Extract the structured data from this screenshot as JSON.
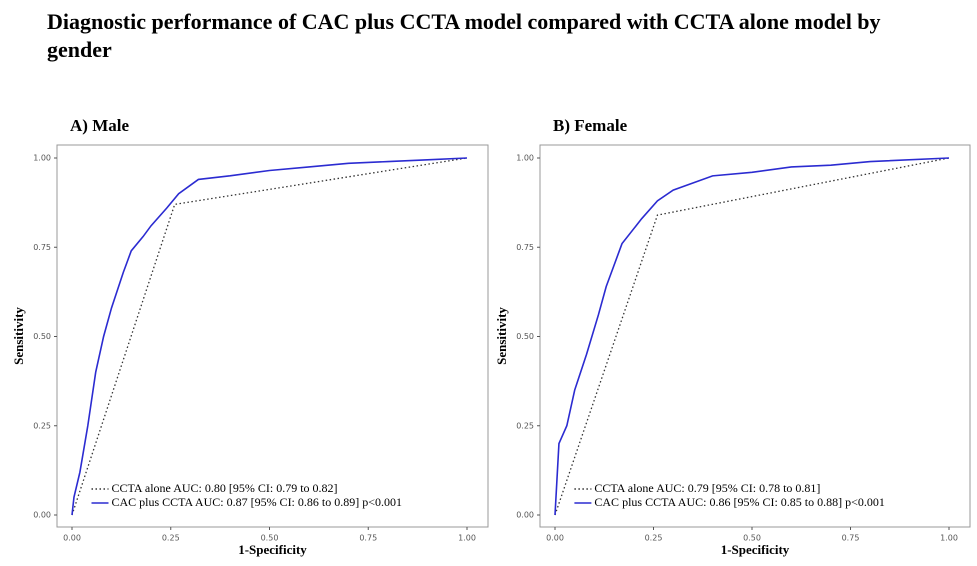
{
  "title": "Diagnostic performance of CAC plus CCTA model compared with CCTA alone model by gender",
  "chart_data": [
    {
      "type": "line",
      "title": "A) Male",
      "xlabel": "1-Specificity",
      "ylabel": "Sensitivity",
      "xlim": [
        0,
        1
      ],
      "ylim": [
        0,
        1
      ],
      "xticks": [
        {
          "value": 0,
          "label": "0.00"
        },
        {
          "value": 0.25,
          "label": "0.25"
        },
        {
          "value": 0.5,
          "label": "0.50"
        },
        {
          "value": 0.75,
          "label": "0.75"
        },
        {
          "value": 1,
          "label": "1.00"
        }
      ],
      "yticks": [
        {
          "value": 0,
          "label": "0.00"
        },
        {
          "value": 0.25,
          "label": "0.25"
        },
        {
          "value": 0.5,
          "label": "0.50"
        },
        {
          "value": 0.75,
          "label": "0.75"
        },
        {
          "value": 1,
          "label": "1.00"
        }
      ],
      "legend": "bottom",
      "series": [
        {
          "name": "CCTA alone AUC: 0.80 [95% CI: 0.79 to 0.82]",
          "color": "#333333",
          "dash": "dotted",
          "x": [
            0,
            0.26,
            1
          ],
          "values": [
            0,
            0.87,
            1
          ]
        },
        {
          "name": "CAC plus CCTA  AUC: 0.87 [95% CI: 0.86 to 0.89] p<0.001",
          "color": "#2b2bd1",
          "dash": "solid",
          "x": [
            0,
            0.005,
            0.02,
            0.04,
            0.06,
            0.08,
            0.1,
            0.13,
            0.15,
            0.18,
            0.2,
            0.24,
            0.27,
            0.32,
            0.4,
            0.5,
            0.6,
            0.7,
            0.8,
            0.9,
            1
          ],
          "values": [
            0,
            0.05,
            0.12,
            0.25,
            0.4,
            0.5,
            0.58,
            0.68,
            0.74,
            0.78,
            0.81,
            0.86,
            0.9,
            0.94,
            0.95,
            0.965,
            0.975,
            0.985,
            0.99,
            0.995,
            1
          ]
        }
      ]
    },
    {
      "type": "line",
      "title": "B) Female",
      "xlabel": "1-Specificity",
      "ylabel": "Sensitivity",
      "xlim": [
        0,
        1
      ],
      "ylim": [
        0,
        1
      ],
      "xticks": [
        {
          "value": 0,
          "label": "0.00"
        },
        {
          "value": 0.25,
          "label": "0.25"
        },
        {
          "value": 0.5,
          "label": "0.50"
        },
        {
          "value": 0.75,
          "label": "0.75"
        },
        {
          "value": 1,
          "label": "1.00"
        }
      ],
      "yticks": [
        {
          "value": 0,
          "label": "0.00"
        },
        {
          "value": 0.25,
          "label": "0.25"
        },
        {
          "value": 0.5,
          "label": "0.50"
        },
        {
          "value": 0.75,
          "label": "0.75"
        },
        {
          "value": 1,
          "label": "1.00"
        }
      ],
      "legend": "bottom",
      "series": [
        {
          "name": "CCTA alone AUC: 0.79 [95% CI: 0.78 to 0.81]",
          "color": "#333333",
          "dash": "dotted",
          "x": [
            0,
            0.26,
            1
          ],
          "values": [
            0,
            0.84,
            1
          ]
        },
        {
          "name": "CAC plus CCTA AUC: 0.86 [95% CI: 0.85 to 0.88] p<0.001",
          "color": "#2b2bd1",
          "dash": "solid",
          "x": [
            0,
            0.005,
            0.01,
            0.03,
            0.05,
            0.08,
            0.11,
            0.13,
            0.15,
            0.17,
            0.22,
            0.26,
            0.3,
            0.35,
            0.4,
            0.5,
            0.6,
            0.7,
            0.8,
            1
          ],
          "values": [
            0,
            0.1,
            0.2,
            0.25,
            0.35,
            0.45,
            0.56,
            0.64,
            0.7,
            0.76,
            0.83,
            0.88,
            0.91,
            0.93,
            0.95,
            0.96,
            0.975,
            0.98,
            0.99,
            1
          ]
        }
      ]
    }
  ]
}
